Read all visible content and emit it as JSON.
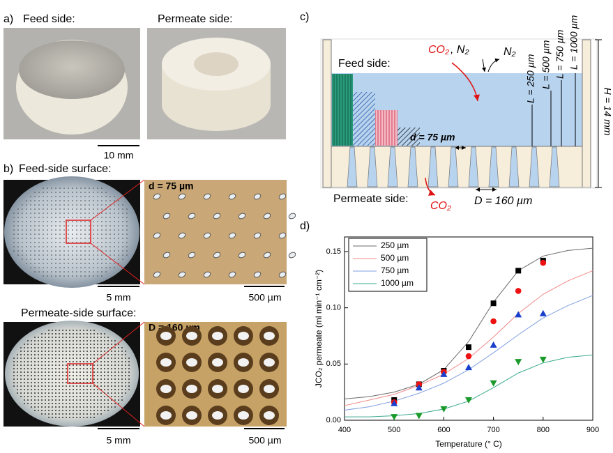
{
  "panel_labels": [
    "a)",
    "b)",
    "c)",
    "d)"
  ],
  "panel_a": {
    "feed_title": "Feed side:",
    "permeate_title": "Permeate side:",
    "scale": "10 mm"
  },
  "panel_b": {
    "feed_title": "Feed-side surface:",
    "feed_pore": "d = 75 µm",
    "feed_scale_photo": "5 mm",
    "feed_scale_zoom": "500 µm",
    "permeate_title": "Permeate-side surface:",
    "permeate_pore": "D = 160 µm",
    "permeate_scale_photo": "5 mm",
    "permeate_scale_zoom": "500 µm"
  },
  "panel_c": {
    "feed_gas": "CO₂",
    "feed_gas_2": ", N₂",
    "sweep": "N₂",
    "feed_label": "Feed side:",
    "lengths": [
      "L = 250 µm",
      "L = 500 µm",
      "L = 750 µm",
      "L = 1000 µm"
    ],
    "height": "H = 14 mm",
    "pore_d": "d = 75 µm",
    "permeate_label": "Permeate side:",
    "permeate_gas": "CO₂",
    "pore_D": "D = 160 µm"
  },
  "chart_data": {
    "type": "scatter",
    "x_label": "Temperature (° C)",
    "y_label": "JCO₂ permeate (ml min⁻¹ cm⁻²)",
    "xlim": [
      400,
      900
    ],
    "xticks": [
      400,
      500,
      600,
      700,
      800,
      900
    ],
    "ylim": [
      0,
      0.163
    ],
    "yticks": [
      {
        "value": 0,
        "label": "0.00"
      },
      {
        "value": 0.05,
        "label": "0.05"
      },
      {
        "value": 0.1,
        "label": "0.10"
      },
      {
        "value": 0.15,
        "label": "0.15"
      }
    ],
    "x": [
      500,
      550,
      600,
      650,
      700,
      750,
      800
    ],
    "fit_x": [
      400,
      450,
      500,
      550,
      600,
      650,
      700,
      750,
      800,
      850,
      900
    ],
    "series": [
      {
        "name": "250 µm",
        "color": "#6b6b6b",
        "marker_color": "#000000",
        "marker": "square",
        "values": [
          0.018,
          0.032,
          0.044,
          0.065,
          0.104,
          0.133,
          0.142
        ],
        "fit": [
          0.019,
          0.021,
          0.025,
          0.032,
          0.045,
          0.07,
          0.105,
          0.133,
          0.146,
          0.151,
          0.153
        ]
      },
      {
        "name": "500 µm",
        "color": "#f08a8a",
        "marker_color": "#ee1111",
        "marker": "circle",
        "values": [
          0.016,
          0.032,
          0.043,
          0.057,
          0.088,
          0.115,
          0.14
        ],
        "fit": [
          0.013,
          0.018,
          0.023,
          0.031,
          0.041,
          0.055,
          0.074,
          0.095,
          0.112,
          0.124,
          0.133
        ]
      },
      {
        "name": "750 µm",
        "color": "#7f9fe0",
        "marker_color": "#1a3fcc",
        "marker": "triangle-up",
        "values": [
          0.015,
          0.029,
          0.041,
          0.047,
          0.067,
          0.094,
          0.095
        ],
        "fit": [
          0.009,
          0.012,
          0.017,
          0.024,
          0.033,
          0.045,
          0.06,
          0.076,
          0.091,
          0.102,
          0.111
        ]
      },
      {
        "name": "1000 µm",
        "color": "#3aa88c",
        "marker_color": "#1a9a2a",
        "marker": "triangle-down",
        "values": [
          0.003,
          0.004,
          0.01,
          0.018,
          0.033,
          0.052,
          0.054
        ],
        "fit": [
          0.003,
          0.003,
          0.004,
          0.006,
          0.01,
          0.017,
          0.029,
          0.042,
          0.051,
          0.056,
          0.058
        ]
      }
    ]
  }
}
